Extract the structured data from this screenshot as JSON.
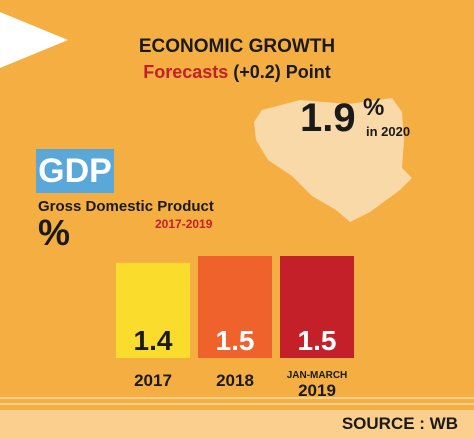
{
  "header": {
    "title": "ECONOMIC GROWTH",
    "subtitle_main": "Forecasts",
    "subtitle_rest": " (+0.2) Point"
  },
  "forecast": {
    "value": "1.9",
    "unit": "%",
    "label": "in 2020"
  },
  "gdp": {
    "badge": "GDP",
    "full_name": "Gross Domestic Product",
    "period": "2017-2019",
    "unit_symbol": "%"
  },
  "source": "SOURCE : WB",
  "colors": {
    "background": "#f5ae42",
    "gdp_badge": "#5aa7da",
    "accent_red": "#c4202a",
    "map_fill": "#f9d9a8"
  },
  "chart_data": {
    "type": "bar",
    "categories": [
      "2017",
      "2018",
      "2019"
    ],
    "category_sublabels": [
      "",
      "",
      "JAN-MARCH"
    ],
    "values": [
      1.4,
      1.5,
      1.5
    ],
    "value_labels": [
      "1.4",
      "1.5",
      "1.5"
    ],
    "bar_colors": [
      "#f9dc2c",
      "#f0622b",
      "#c4202a"
    ],
    "title": "ECONOMIC GROWTH"
  }
}
